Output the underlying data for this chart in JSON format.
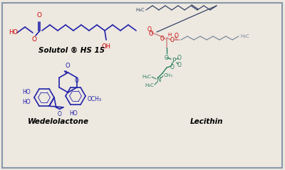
{
  "background_color": "#ede8e0",
  "border_color": "#8899aa",
  "solutol_label": "Solutol ® HS 15",
  "wedelolactone_label": "Wedelolactone",
  "lecithin_label": "Lecithin",
  "blue_color": "#2222aa",
  "red_color": "#cc0000",
  "green_color": "#2a8060",
  "gray_color": "#778899",
  "label_fontsize": 7.5,
  "label_fontweight": "bold"
}
